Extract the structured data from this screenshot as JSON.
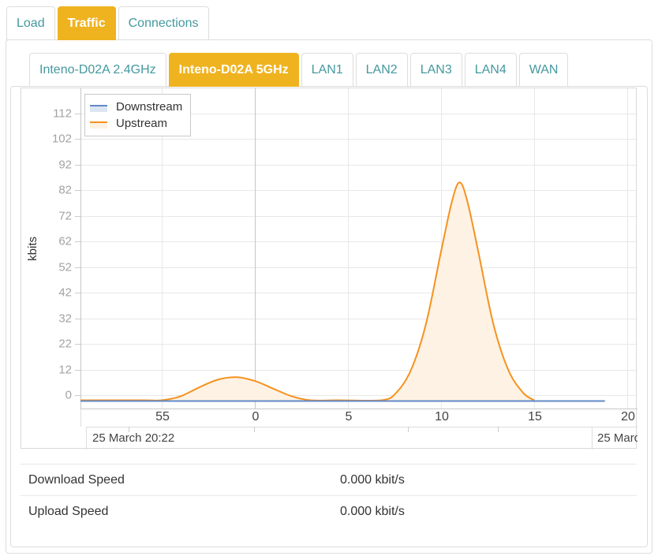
{
  "colors": {
    "accent_teal": "#44999f",
    "active_tab_bg": "#efb320",
    "downstream_line": "#6189c6",
    "downstream_fill": "#dce6f3",
    "upstream_line": "#f6921e",
    "upstream_fill": "#fdf2e4",
    "grid": "#e8e8e8",
    "grid_dark": "#c6c6c6",
    "plot_border": "#c8c8c8"
  },
  "primary_tabs": [
    {
      "label": "Load",
      "active": false
    },
    {
      "label": "Traffic",
      "active": true
    },
    {
      "label": "Connections",
      "active": false
    }
  ],
  "secondary_tabs": [
    {
      "label": "Inteno-D02A 2.4GHz",
      "active": false
    },
    {
      "label": "Inteno-D02A 5GHz",
      "active": true
    },
    {
      "label": "LAN1",
      "active": false
    },
    {
      "label": "LAN2",
      "active": false
    },
    {
      "label": "LAN3",
      "active": false
    },
    {
      "label": "LAN4",
      "active": false
    },
    {
      "label": "WAN",
      "active": false
    }
  ],
  "chart_data": {
    "type": "area",
    "title": "",
    "xlabel": "",
    "ylabel": "kbits",
    "grid": true,
    "legend_position": "top-left",
    "y_ticks": [
      0,
      12,
      22,
      32,
      42,
      52,
      62,
      72,
      82,
      92,
      102,
      112
    ],
    "ylim": [
      0,
      118
    ],
    "x_ticks": [
      {
        "label": "55",
        "min": -5
      },
      {
        "label": "0",
        "min": 0
      },
      {
        "label": "5",
        "min": 5
      },
      {
        "label": "10",
        "min": 10
      },
      {
        "label": "15",
        "min": 15
      },
      {
        "label": "20",
        "min": 20
      }
    ],
    "x_range_minutes": [
      -9.4,
      20.6
    ],
    "x_date_labels": {
      "left": "25 March 20:22",
      "right": "25 Marc"
    },
    "series": [
      {
        "name": "Downstream",
        "color": "#6189c6",
        "fill_color": "#dce6f3",
        "points": [
          [
            -9.4,
            0
          ],
          [
            18.8,
            0
          ]
        ]
      },
      {
        "name": "Upstream",
        "color": "#f6921e",
        "fill_color": "#fdf2e4",
        "points": [
          [
            -9.4,
            0
          ],
          [
            -6,
            0
          ],
          [
            -5,
            0
          ],
          [
            -4,
            1.5
          ],
          [
            -3,
            5
          ],
          [
            -2,
            8
          ],
          [
            -1,
            9
          ],
          [
            0,
            7.5
          ],
          [
            1,
            4.5
          ],
          [
            2,
            1.5
          ],
          [
            3,
            0
          ],
          [
            4.5,
            0
          ],
          [
            6.8,
            0
          ],
          [
            7.6,
            3
          ],
          [
            8.4,
            12
          ],
          [
            9.2,
            30
          ],
          [
            10,
            58
          ],
          [
            10.6,
            78
          ],
          [
            11,
            85
          ],
          [
            11.4,
            78
          ],
          [
            12,
            58
          ],
          [
            12.8,
            30
          ],
          [
            13.6,
            12
          ],
          [
            14.4,
            3
          ],
          [
            15,
            0
          ]
        ]
      }
    ]
  },
  "stats": [
    {
      "label": "Download Speed",
      "value": "0.000 kbit/s"
    },
    {
      "label": "Upload Speed",
      "value": "0.000 kbit/s"
    }
  ]
}
